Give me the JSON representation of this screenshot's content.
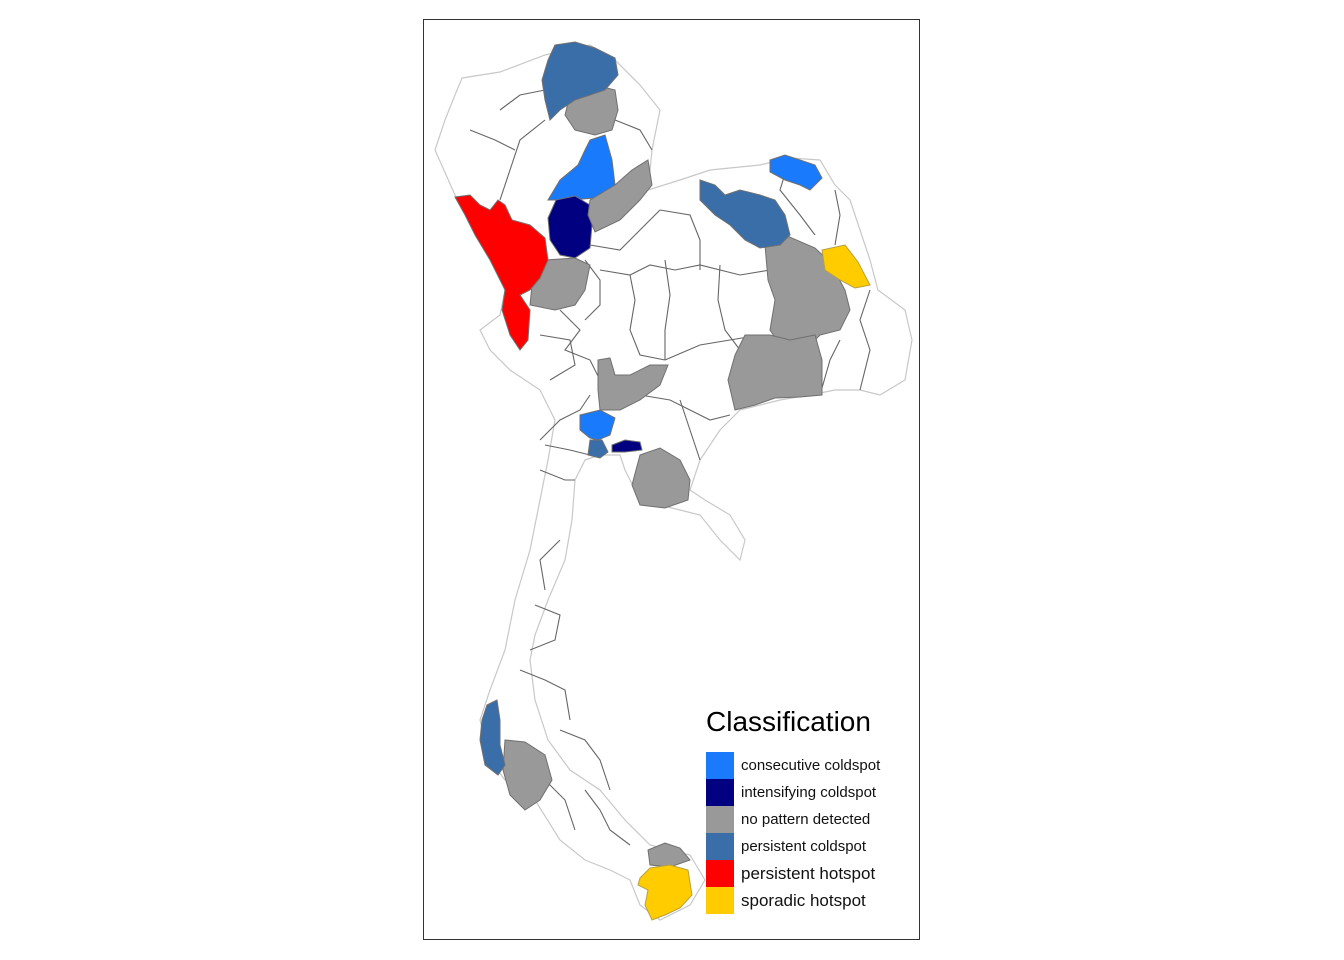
{
  "map": {
    "legend_title": "Classification",
    "outline_color": "#c8c8c8",
    "boundary_color": "#666666",
    "classes": [
      {
        "key": "consecutive",
        "label": "consecutive coldspot",
        "color": "#1a7afc"
      },
      {
        "key": "intensifying",
        "label": "intensifying coldspot",
        "color": "#000080"
      },
      {
        "key": "nopattern",
        "label": "no pattern detected",
        "color": "#999999"
      },
      {
        "key": "persistent_cold",
        "label": "persistent coldspot",
        "color": "#3a6ea8"
      },
      {
        "key": "persistent_hot",
        "label": "persistent hotspot",
        "color": "#ff0000"
      },
      {
        "key": "sporadic",
        "label": "sporadic hotspot",
        "color": "#ffcc00"
      }
    ]
  }
}
